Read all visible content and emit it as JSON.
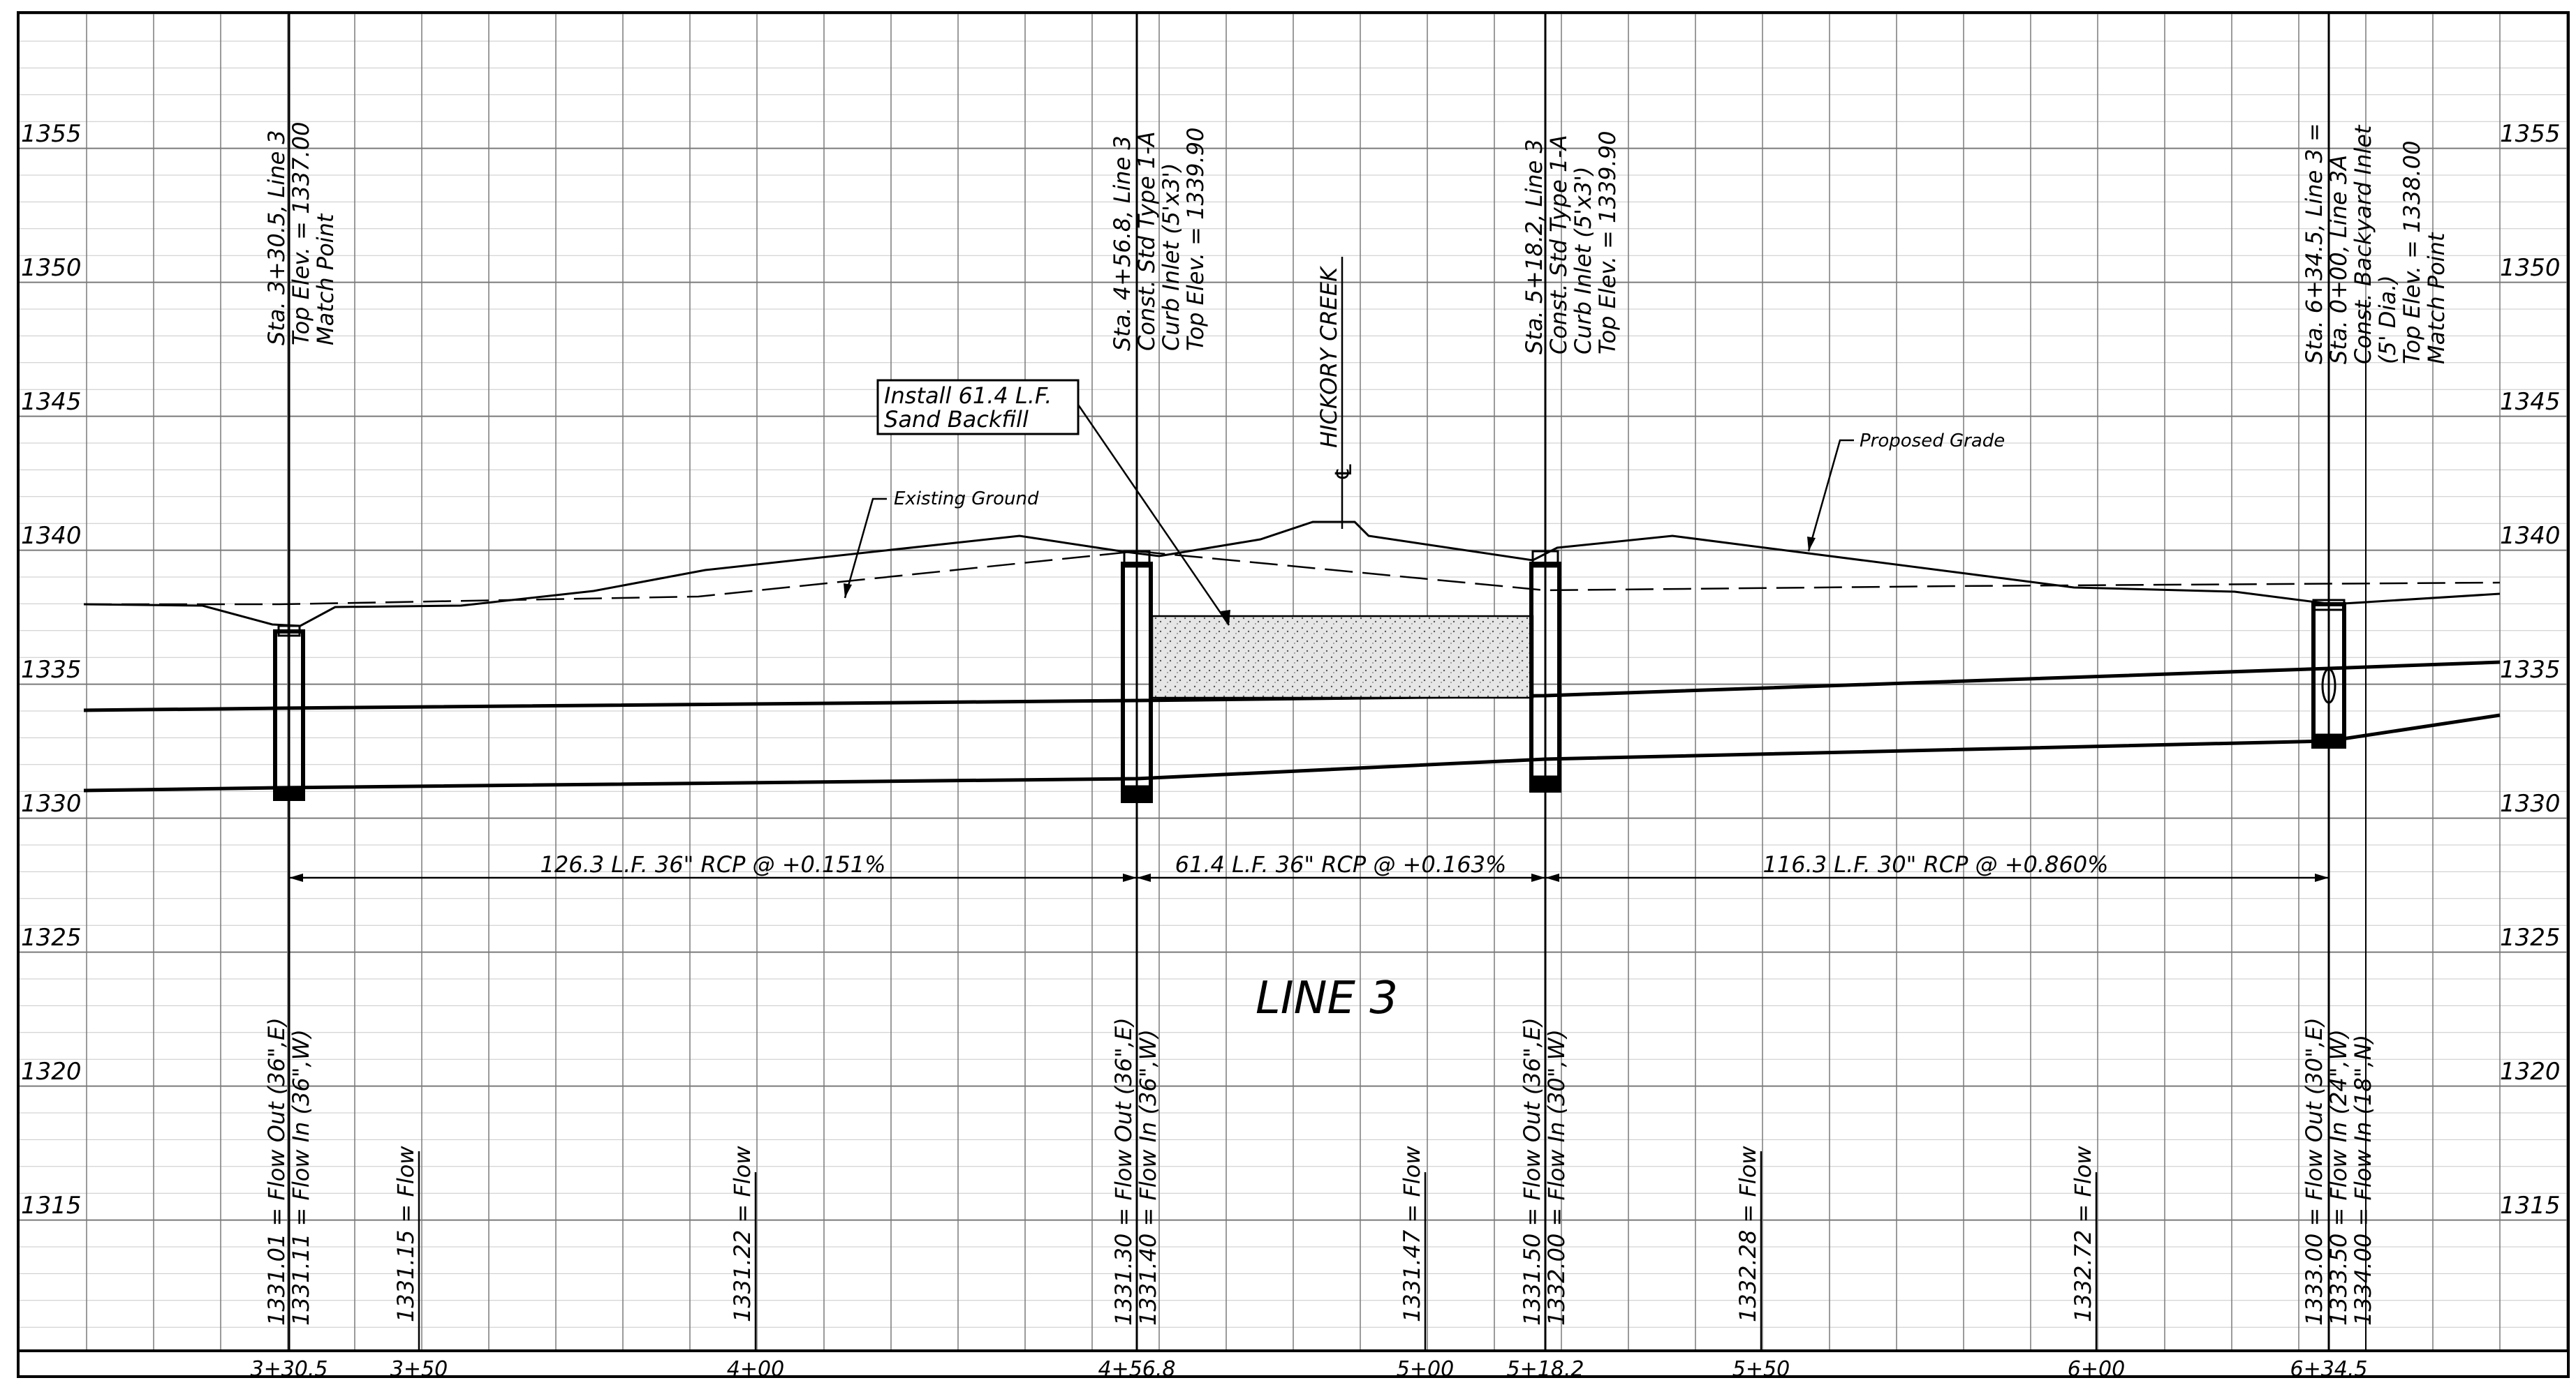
{
  "elevation_labels": [
    "1355",
    "1350",
    "1345",
    "1340",
    "1335",
    "1330",
    "1325",
    "1320",
    "1315"
  ],
  "station_labels": [
    "3+30.5",
    "3+50",
    "4+00",
    "4+56.8",
    "5+00",
    "5+18.2",
    "5+50",
    "6+00",
    "6+34.5"
  ],
  "drawing_title": "LINE 3",
  "callouts": {
    "sand_backfill": [
      "Install 61.4 L.F.",
      "Sand Backfill"
    ],
    "existing_ground": "Existing Ground",
    "proposed_grade": "Proposed Grade",
    "creek": "HICKORY CREEK",
    "centerline_symbol": "℄"
  },
  "structure_notes": {
    "s1": [
      "Sta. 3+30.5, Line 3",
      "Top Elev. = 1337.00",
      "Match Point"
    ],
    "s2": [
      "Sta. 4+56.8, Line 3",
      "Const. Std Type 1-A",
      "Curb Inlet (5'x3')",
      "Top Elev. = 1339.90"
    ],
    "s3": [
      "Sta. 5+18.2, Line 3",
      "Const. Std Type 1-A",
      "Curb Inlet (5'x3')",
      "Top Elev. = 1339.90"
    ],
    "s4": [
      "Sta. 6+34.5, Line 3 =",
      "Sta. 0+00, Line 3A",
      "Const. Backyard Inlet",
      "(5' Dia.)",
      "Top Elev. = 1338.00",
      "Match Point"
    ]
  },
  "pipe_runs": [
    "126.3 L.F. 36\" RCP @ +0.151%",
    "61.4 L.F. 36\" RCP @ +0.163%",
    "116.3 L.F. 30\" RCP @ +0.860%"
  ],
  "flow_labels": {
    "s1": [
      "1331.01 = Flow Out (36\",E)",
      "1331.11 = Flow In (36\",W)"
    ],
    "sta350": "1331.15 = Flow",
    "sta400": "1331.22 = Flow",
    "s2": [
      "1331.30 = Flow Out (36\",E)",
      "1331.40 = Flow In (36\",W)"
    ],
    "sta500": "1331.47 = Flow",
    "s3": [
      "1331.50 = Flow Out (36\",E)",
      "1332.00 = Flow In (30\",W)"
    ],
    "sta550": "1332.28 = Flow",
    "sta600": "1332.72 = Flow",
    "s4": [
      "1333.00 = Flow Out (30\",E)",
      "1333.50 = Flow In (24\",W)",
      "1334.00 = Flow In (18\",N)"
    ]
  },
  "colors": {
    "ink": "#000000",
    "grid_minor": "#c8c8c8",
    "grid_major": "#7a7a7a",
    "background": "#ffffff"
  }
}
